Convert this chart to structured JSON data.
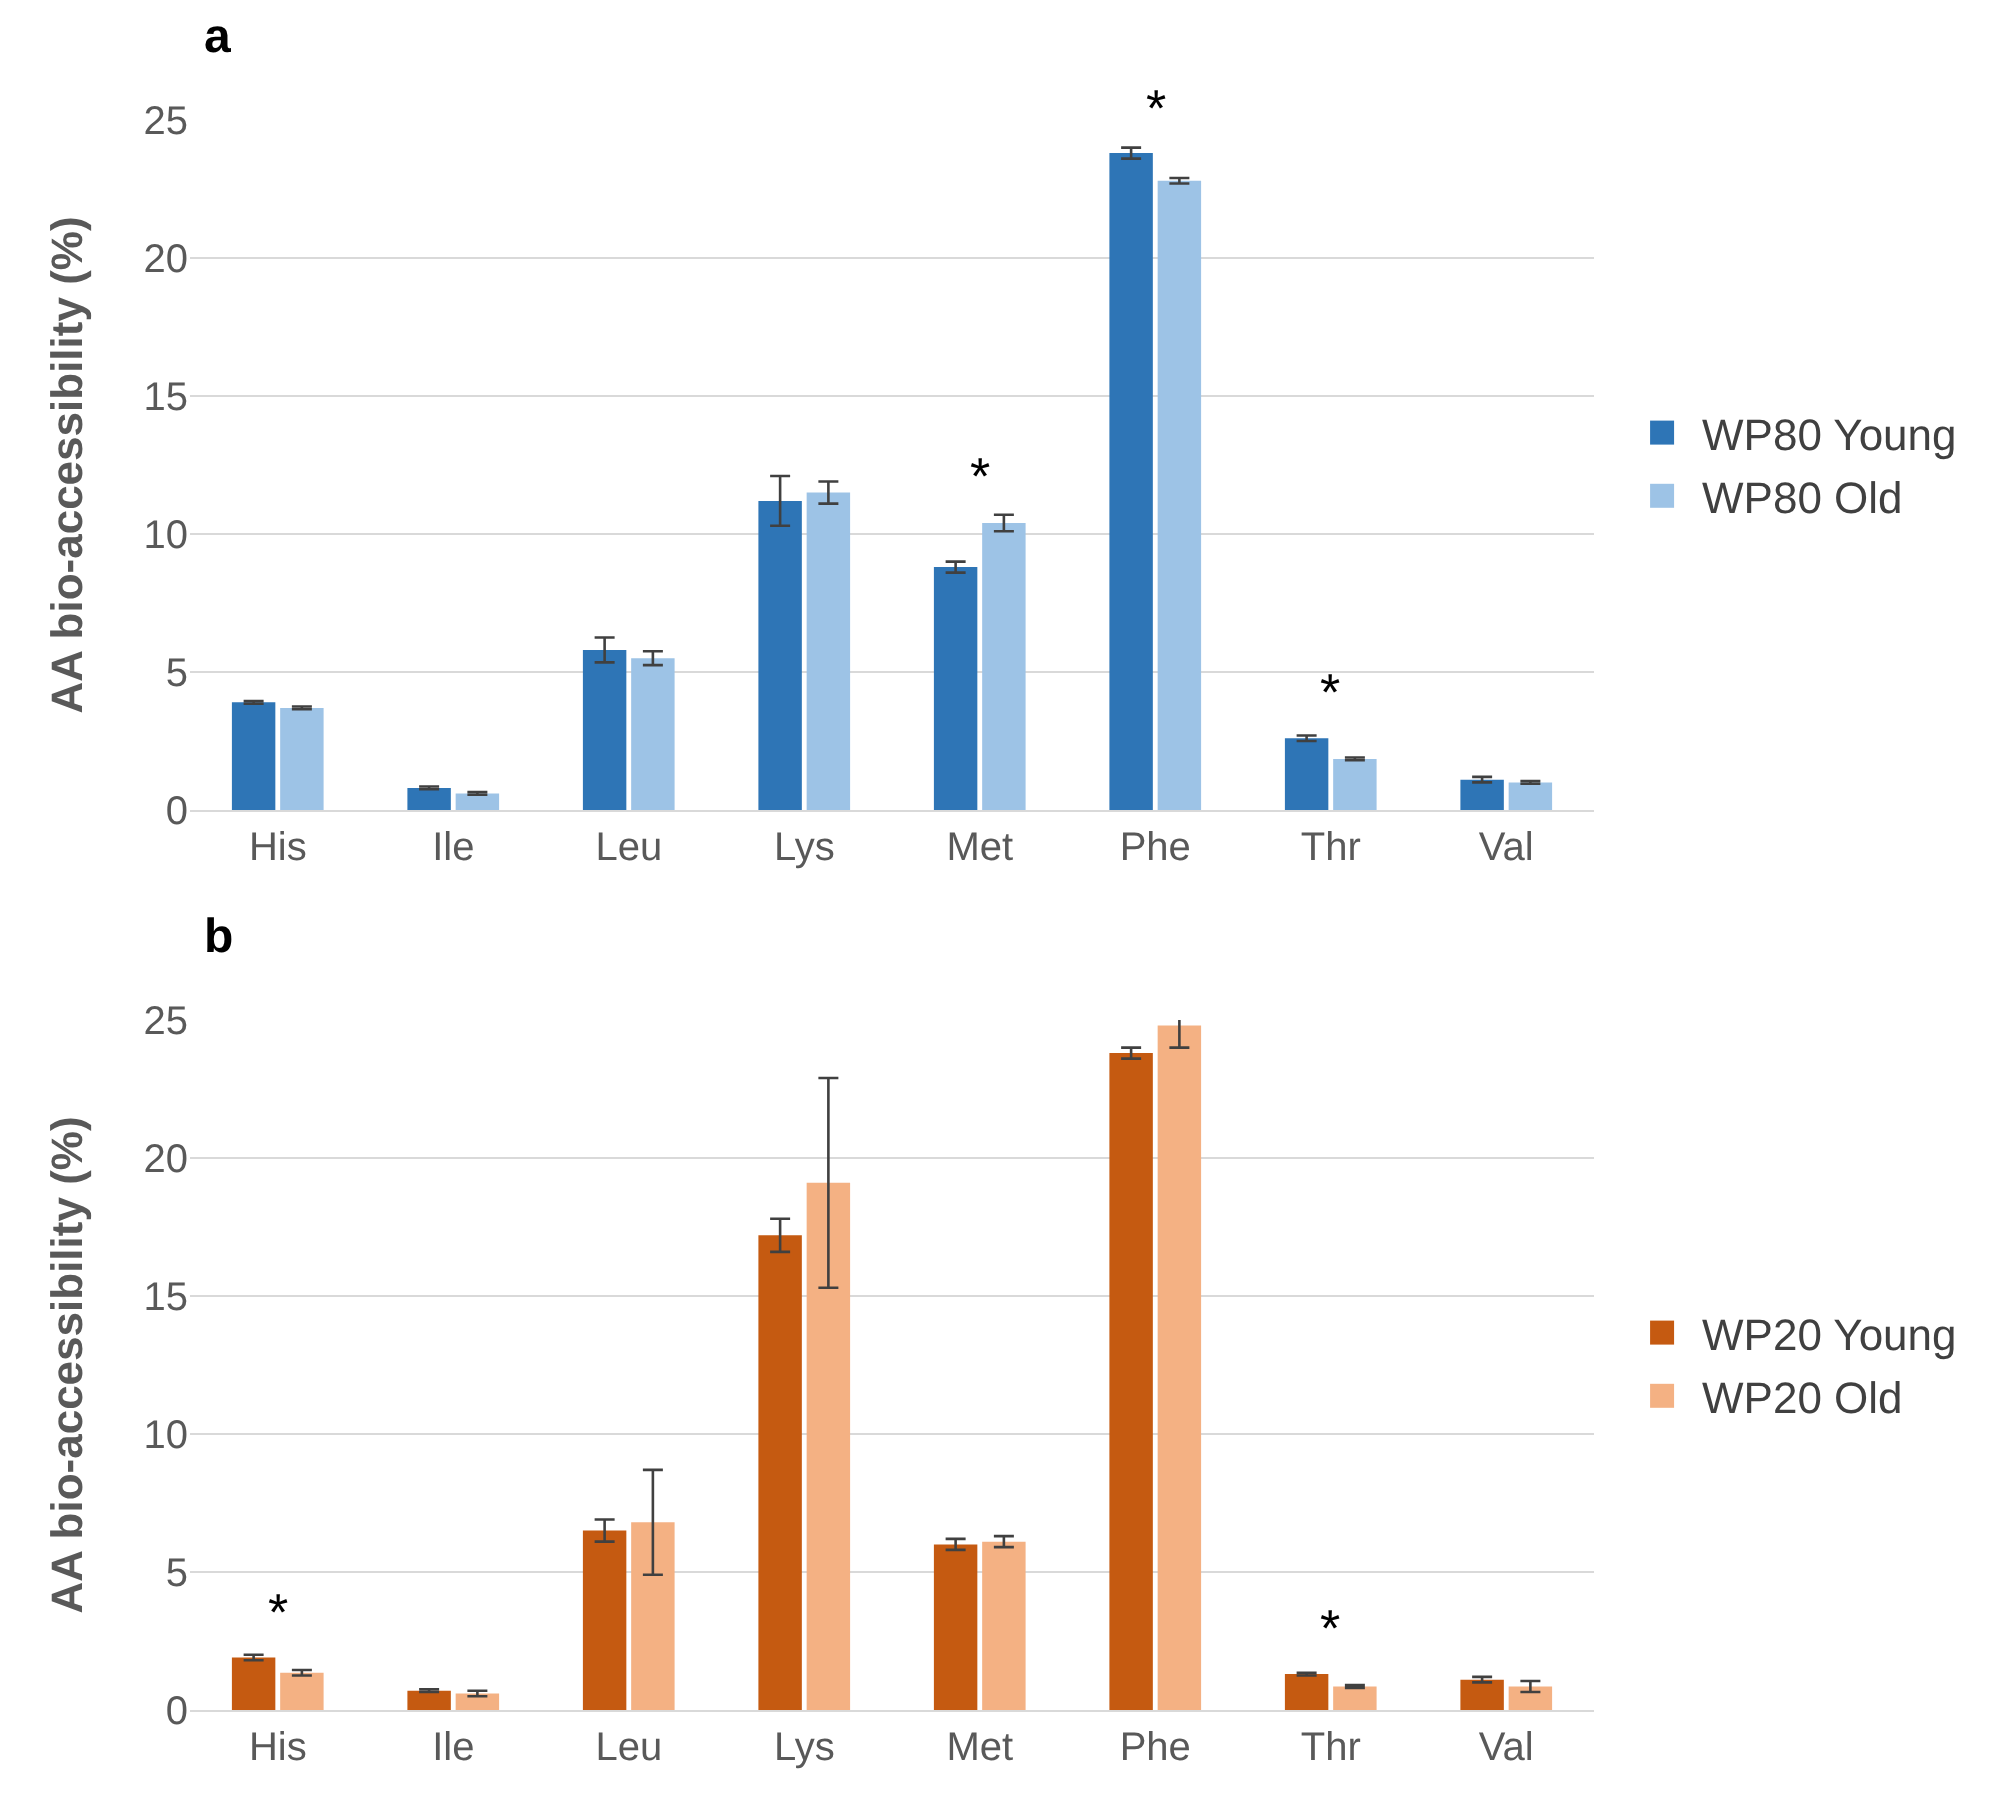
{
  "chart_data": [
    {
      "type": "bar",
      "title": "a",
      "ylabel": "AA bio-accessibility (%)",
      "categories": [
        "His",
        "Ile",
        "Leu",
        "Lys",
        "Met",
        "Phe",
        "Thr",
        "Val"
      ],
      "ylim": [
        0,
        25
      ],
      "yticks": [
        0,
        5,
        10,
        15,
        20,
        25
      ],
      "grid": "y",
      "legend": "right",
      "series": [
        {
          "name": "WP80 Young",
          "color": "#2e75b6",
          "values": [
            3.9,
            0.8,
            5.8,
            11.2,
            8.8,
            23.8,
            2.6,
            1.1
          ],
          "errors": [
            0.05,
            0.05,
            0.45,
            0.9,
            0.2,
            0.2,
            0.1,
            0.1
          ]
        },
        {
          "name": "WP80 Old",
          "color": "#9dc3e6",
          "values": [
            3.7,
            0.6,
            5.5,
            11.5,
            10.4,
            22.8,
            1.85,
            1.0
          ],
          "errors": [
            0.05,
            0.05,
            0.25,
            0.4,
            0.3,
            0.1,
            0.05,
            0.05
          ]
        }
      ],
      "annotations": [
        {
          "text": "*",
          "x": "Met",
          "y": 10.4
        },
        {
          "text": "*",
          "x": "Phe",
          "y": 23.8
        },
        {
          "text": "*",
          "x": "Thr",
          "y": 2.6
        }
      ]
    },
    {
      "type": "bar",
      "title": "b",
      "ylabel": "AA bio-accessibility (%)",
      "categories": [
        "His",
        "Ile",
        "Leu",
        "Lys",
        "Met",
        "Phe",
        "Thr",
        "Val"
      ],
      "ylim": [
        0,
        25
      ],
      "yticks": [
        0,
        5,
        10,
        15,
        20,
        25
      ],
      "grid": "y",
      "legend": "right",
      "series": [
        {
          "name": "WP20 Young",
          "color": "#c55a11",
          "values": [
            1.9,
            0.7,
            6.5,
            17.2,
            6.0,
            23.8,
            1.3,
            1.1
          ],
          "errors": [
            0.1,
            0.05,
            0.4,
            0.6,
            0.2,
            0.2,
            0.05,
            0.1
          ]
        },
        {
          "name": "WP20 Old",
          "color": "#f4b183",
          "values": [
            1.35,
            0.6,
            6.8,
            19.1,
            6.1,
            24.8,
            0.85,
            0.85
          ],
          "errors": [
            0.1,
            0.1,
            1.9,
            3.8,
            0.2,
            0.8,
            0.05,
            0.2
          ]
        }
      ],
      "annotations": [
        {
          "text": "*",
          "x": "His",
          "y": 1.9
        },
        {
          "text": "*",
          "x": "Thr",
          "y": 1.3
        }
      ]
    }
  ]
}
